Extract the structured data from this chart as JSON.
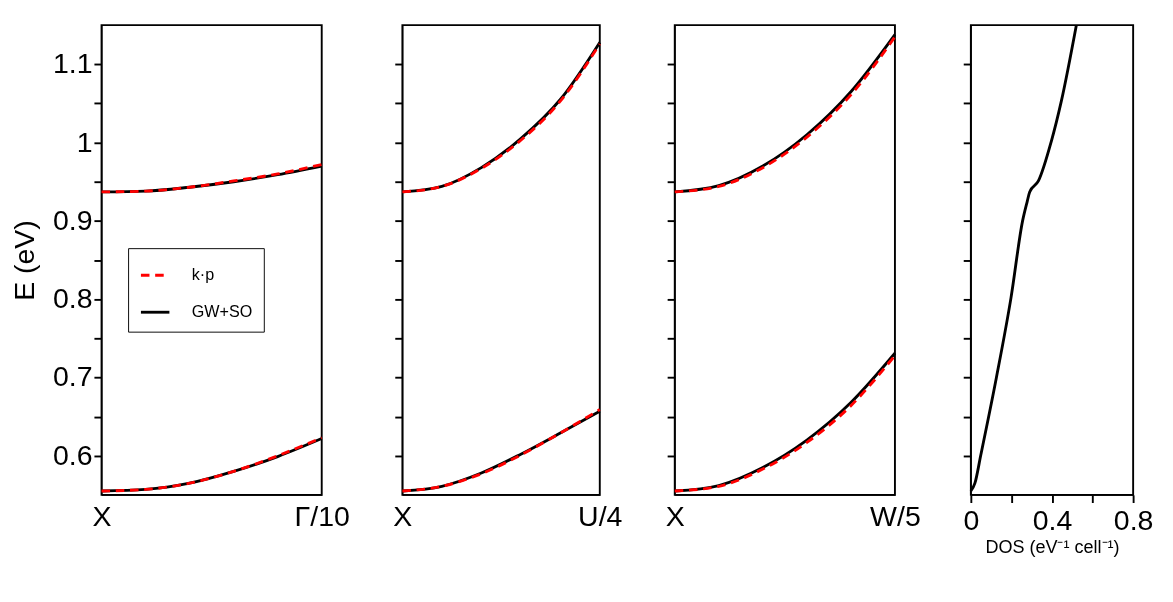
{
  "chart_data": [
    {
      "type": "line",
      "ylabel": "E (eV)",
      "legend": "center left",
      "line_style": "solid",
      "marker": "none",
      "categories": [
        "X",
        null,
        null,
        null,
        null,
        "Γ/10"
      ],
      "ylim": [
        0.55,
        1.15
      ],
      "yticks": [
        0.6,
        0.7,
        0.8,
        0.9,
        1,
        1.1,
        {
          "value": 0.65,
          "label": null
        },
        {
          "value": 0.75,
          "label": null
        },
        {
          "value": 0.85,
          "label": null
        },
        {
          "value": 0.95,
          "label": null
        },
        {
          "value": 1.05,
          "label": null
        }
      ],
      "series": [
        {
          "name": "k·p",
          "color": "#ff0000",
          "line_style": "dashed",
          "values": [
            0.937,
            0.938,
            0.943,
            0.951,
            0.96,
            0.972
          ]
        },
        {
          "color": "#ff0000",
          "line_style": "dashed",
          "values": [
            0.555,
            0.557,
            0.565,
            0.58,
            0.6,
            0.623
          ]
        },
        {
          "name": "GW+SO",
          "color": "#000000",
          "values": [
            0.937,
            0.938,
            0.943,
            0.95,
            0.959,
            0.97
          ]
        },
        {
          "color": "#000000",
          "values": [
            0.555,
            0.557,
            0.565,
            0.58,
            0.599,
            0.622
          ]
        }
      ]
    },
    {
      "type": "line",
      "tick_labels": "x",
      "line_style": "solid",
      "marker": "none",
      "categories": [
        "X",
        null,
        null,
        null,
        null,
        "U/4"
      ],
      "ylim": [
        0.55,
        1.15
      ],
      "yticks": [
        0.6,
        0.7,
        0.8,
        0.9,
        1,
        1.1,
        {
          "value": 0.65,
          "label": null
        },
        {
          "value": 0.75,
          "label": null
        },
        {
          "value": 0.85,
          "label": null
        },
        {
          "value": 0.95,
          "label": null
        },
        {
          "value": 1.05,
          "label": null
        }
      ],
      "series": [
        {
          "color": "#ff0000",
          "line_style": "dashed",
          "values": [
            0.937,
            0.944,
            0.967,
            1.003,
            1.053,
            1.126
          ]
        },
        {
          "color": "#ff0000",
          "line_style": "dashed",
          "values": [
            0.555,
            0.561,
            0.577,
            0.601,
            0.629,
            0.659
          ]
        },
        {
          "color": "#000000",
          "values": [
            0.937,
            0.944,
            0.968,
            1.005,
            1.055,
            1.128
          ]
        },
        {
          "color": "#000000",
          "values": [
            0.555,
            0.561,
            0.578,
            0.602,
            0.629,
            0.657
          ]
        }
      ]
    },
    {
      "type": "line",
      "tick_labels": "x",
      "line_style": "solid",
      "marker": "none",
      "categories": [
        "X",
        null,
        null,
        null,
        null,
        "W/5"
      ],
      "ylim": [
        0.55,
        1.15
      ],
      "yticks": [
        0.6,
        0.7,
        0.8,
        0.9,
        1,
        1.1,
        {
          "value": 0.65,
          "label": null
        },
        {
          "value": 0.75,
          "label": null
        },
        {
          "value": 0.85,
          "label": null
        },
        {
          "value": 0.95,
          "label": null
        },
        {
          "value": 1.05,
          "label": null
        }
      ],
      "series": [
        {
          "color": "#ff0000",
          "line_style": "dashed",
          "values": [
            0.937,
            0.944,
            0.968,
            1.007,
            1.061,
            1.135
          ]
        },
        {
          "color": "#ff0000",
          "line_style": "dashed",
          "values": [
            0.555,
            0.561,
            0.583,
            0.617,
            0.664,
            0.728
          ]
        },
        {
          "color": "#000000",
          "values": [
            0.937,
            0.945,
            0.97,
            1.01,
            1.065,
            1.138
          ]
        },
        {
          "color": "#000000",
          "values": [
            0.555,
            0.562,
            0.585,
            0.62,
            0.668,
            0.731
          ]
        }
      ]
    },
    {
      "type": "line",
      "tick_labels": "x",
      "xlabel": "DOS (eV⁻¹ cell⁻¹)",
      "line_style": "solid",
      "marker": "none",
      "xlim": [
        0,
        0.8
      ],
      "xticks": [
        0,
        0.4,
        0.8,
        {
          "value": 0.2,
          "label": null
        },
        {
          "value": 0.6,
          "label": null
        }
      ],
      "ylim": [
        0.55,
        1.15
      ],
      "yticks": [
        0.6,
        0.7,
        0.8,
        0.9,
        1,
        1.1,
        {
          "value": 0.65,
          "label": null
        },
        {
          "value": 0.75,
          "label": null
        },
        {
          "value": 0.85,
          "label": null
        },
        {
          "value": 0.95,
          "label": null
        },
        {
          "value": 1.05,
          "label": null
        }
      ],
      "series": [
        {
          "color": "#000000",
          "x": [
            0,
            0.02,
            0.049,
            0.126,
            0.198,
            0.255,
            0.278,
            0.29,
            0.333,
            0.396,
            0.446,
            0.52
          ],
          "values": [
            0.555,
            0.565,
            0.601,
            0.7,
            0.802,
            0.9,
            0.925,
            0.937,
            0.951,
            1.001,
            1.053,
            1.15
          ]
        }
      ]
    }
  ]
}
